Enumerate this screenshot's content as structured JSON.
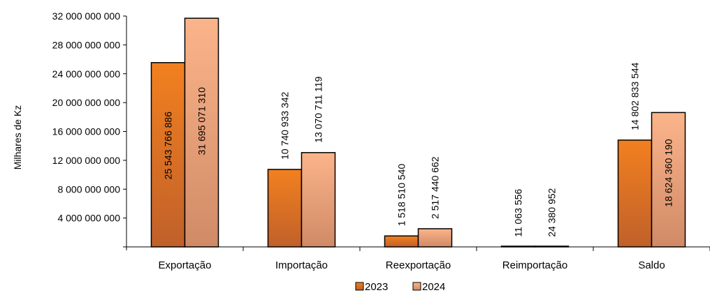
{
  "chart_data": {
    "type": "bar",
    "title": "",
    "xlabel": "",
    "ylabel": "Milhares de  Kz",
    "ylim": [
      0,
      32000000000
    ],
    "yticks": [
      {
        "value": 4000000000,
        "label": "4 000 000 000"
      },
      {
        "value": 8000000000,
        "label": "8 000 000 000"
      },
      {
        "value": 12000000000,
        "label": "12 000 000 000"
      },
      {
        "value": 16000000000,
        "label": "16 000 000 000"
      },
      {
        "value": 20000000000,
        "label": "20 000 000 000"
      },
      {
        "value": 24000000000,
        "label": "24 000 000 000"
      },
      {
        "value": 28000000000,
        "label": "28 000 000 000"
      },
      {
        "value": 32000000000,
        "label": "32 000 000 000"
      }
    ],
    "grid": false,
    "legend_position": "bottom",
    "categories": [
      "Exportação",
      "Importação",
      "Reexportação",
      "Reimportação",
      "Saldo"
    ],
    "series": [
      {
        "name": "2023",
        "color_top": "#f2801f",
        "color_bottom": "#c0602a",
        "values": [
          25543766886,
          10740933342,
          1518510540,
          11063556,
          14802833544
        ],
        "labels": [
          "25 543 766 886",
          "10 740 933 342",
          "1 518 510 540",
          "11 063 556",
          "14 802 833 544"
        ]
      },
      {
        "name": "2024",
        "color_top": "#fbb48a",
        "color_bottom": "#d08a66",
        "values": [
          31695071310,
          13070711119,
          2517440662,
          24380952,
          18624360190
        ],
        "labels": [
          "31 695 071 310",
          "13 070 711 119",
          "2 517 440 662",
          "24 380 952",
          "18 624 360 190"
        ]
      }
    ]
  }
}
